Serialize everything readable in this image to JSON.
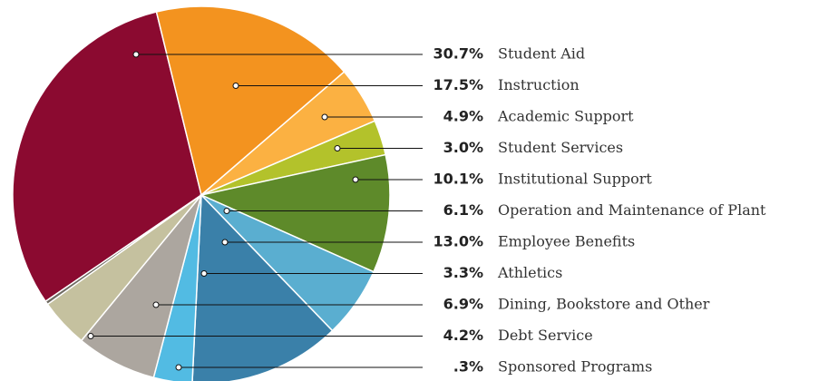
{
  "chart_data": {
    "type": "pie",
    "categories": [
      "Student Aid",
      "Instruction",
      "Academic Support",
      "Student Services",
      "Institutional Support",
      "Operation and Maintenance of Plant",
      "Employee Benefits",
      "Athletics",
      "Dining, Bookstore and Other",
      "Debt Service",
      "Sponsored Programs"
    ],
    "values": [
      30.7,
      17.5,
      4.9,
      3.0,
      10.1,
      6.1,
      13.0,
      3.3,
      6.9,
      4.2,
      0.3
    ],
    "value_labels": [
      "30.7%",
      "17.5%",
      "4.9%",
      "3.0%",
      "10.1%",
      "6.1%",
      "13.0%",
      "3.3%",
      "6.9%",
      "4.2%",
      ".3%"
    ],
    "colors": [
      "#8b0a30",
      "#f3931f",
      "#fbb142",
      "#b3c22b",
      "#5e8a2a",
      "#5aaed0",
      "#3a80a9",
      "#52bbe3",
      "#aca69f",
      "#c5c19f",
      "#6f6a62"
    ]
  }
}
